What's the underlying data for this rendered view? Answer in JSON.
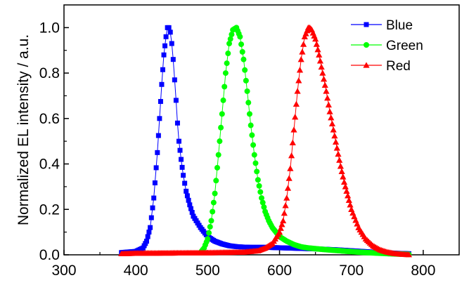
{
  "chart_data": {
    "type": "scatter",
    "title": "",
    "xlabel": "",
    "ylabel": "Normalized EL intensity / a.u.",
    "xlim": [
      300,
      850
    ],
    "ylim": [
      0.0,
      1.1
    ],
    "x_ticks": [
      {
        "value": 300,
        "label": "300"
      },
      {
        "value": 400,
        "label": "400"
      },
      {
        "value": 500,
        "label": "500"
      },
      {
        "value": 600,
        "label": "600"
      },
      {
        "value": 700,
        "label": "700"
      },
      {
        "value": 800,
        "label": "800"
      }
    ],
    "y_ticks": [
      {
        "value": 0.0,
        "label": "0.0"
      },
      {
        "value": 0.2,
        "label": "0.2"
      },
      {
        "value": 0.4,
        "label": "0.4"
      },
      {
        "value": 0.6,
        "label": "0.6"
      },
      {
        "value": 0.8,
        "label": "0.8"
      },
      {
        "value": 1.0,
        "label": "1.0"
      }
    ],
    "grid": false,
    "legend_position": "top-right",
    "series": [
      {
        "name": "Blue",
        "color": "#0000ff",
        "marker": "square",
        "x": [
          380,
          400,
          410,
          415,
          420,
          425,
          430,
          433,
          436,
          439,
          442,
          444,
          446,
          448,
          450,
          452,
          454,
          456,
          458,
          460,
          463,
          466,
          470,
          475,
          480,
          490,
          500,
          510,
          520,
          530,
          540,
          550,
          560,
          570,
          580,
          590,
          600,
          610,
          620,
          640,
          660,
          680,
          700,
          720,
          740,
          760,
          780
        ],
        "y": [
          0.01,
          0.015,
          0.03,
          0.06,
          0.12,
          0.25,
          0.45,
          0.6,
          0.75,
          0.88,
          0.96,
          1.0,
          1.0,
          0.98,
          0.93,
          0.86,
          0.77,
          0.68,
          0.58,
          0.5,
          0.42,
          0.35,
          0.28,
          0.22,
          0.17,
          0.12,
          0.08,
          0.06,
          0.048,
          0.04,
          0.036,
          0.034,
          0.033,
          0.033,
          0.033,
          0.032,
          0.031,
          0.03,
          0.029,
          0.027,
          0.025,
          0.022,
          0.018,
          0.014,
          0.01,
          0.007,
          0.005
        ]
      },
      {
        "name": "Green",
        "color": "#00ff00",
        "marker": "circle",
        "x": [
          490,
          495,
          500,
          505,
          510,
          515,
          520,
          525,
          530,
          535,
          540,
          545,
          550,
          555,
          560,
          565,
          570,
          575,
          580,
          585,
          590,
          595,
          600,
          610,
          620,
          630,
          640,
          660,
          680,
          700,
          720,
          740,
          760,
          780
        ],
        "y": [
          0.01,
          0.03,
          0.07,
          0.15,
          0.27,
          0.44,
          0.62,
          0.8,
          0.93,
          0.99,
          1.0,
          0.96,
          0.86,
          0.72,
          0.57,
          0.44,
          0.33,
          0.25,
          0.19,
          0.15,
          0.12,
          0.1,
          0.08,
          0.06,
          0.045,
          0.035,
          0.03,
          0.024,
          0.019,
          0.014,
          0.01,
          0.007,
          0.004,
          0.002
        ]
      },
      {
        "name": "Red",
        "color": "#ff0000",
        "marker": "triangle",
        "x": [
          380,
          400,
          450,
          500,
          550,
          570,
          580,
          590,
          600,
          605,
          610,
          615,
          620,
          625,
          630,
          635,
          640,
          642,
          645,
          650,
          655,
          660,
          665,
          670,
          675,
          680,
          685,
          690,
          695,
          700,
          710,
          720,
          730,
          740,
          750,
          760,
          770,
          780
        ],
        "y": [
          0.005,
          0.007,
          0.008,
          0.009,
          0.012,
          0.018,
          0.03,
          0.05,
          0.1,
          0.15,
          0.25,
          0.38,
          0.55,
          0.72,
          0.86,
          0.96,
          1.0,
          1.0,
          0.99,
          0.95,
          0.88,
          0.8,
          0.72,
          0.63,
          0.55,
          0.47,
          0.39,
          0.32,
          0.26,
          0.2,
          0.12,
          0.07,
          0.04,
          0.022,
          0.012,
          0.006,
          0.003,
          0.001
        ]
      }
    ]
  }
}
